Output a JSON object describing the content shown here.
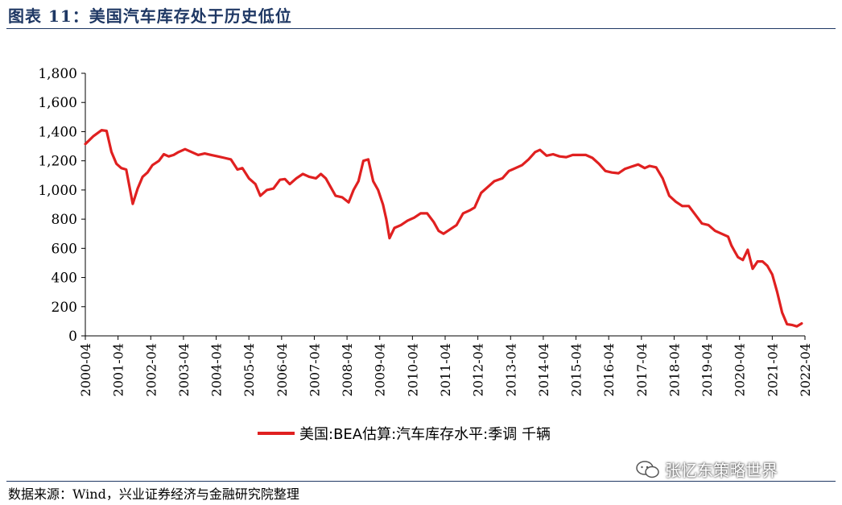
{
  "figure": {
    "title": "图表 11：美国汽车库存处于历史低位",
    "source": "数据来源：Wind，兴业证券经济与金融研究院整理",
    "watermark": "张忆东策略世界"
  },
  "colors": {
    "line": "#e02020",
    "title": "#1f3864"
  },
  "chart_data": {
    "type": "line",
    "title": "",
    "xlabel": "",
    "ylabel": "",
    "ylim": [
      0,
      1800
    ],
    "yticks": [
      0,
      200,
      400,
      600,
      800,
      1000,
      1200,
      1400,
      1600,
      1800
    ],
    "ytick_labels": [
      "0",
      "200",
      "400",
      "600",
      "800",
      "1,000",
      "1,200",
      "1,400",
      "1,600",
      "1,800"
    ],
    "xlim": [
      2000.25,
      2022.25
    ],
    "xticks": [
      2000.25,
      2001.25,
      2002.25,
      2003.25,
      2004.25,
      2005.25,
      2006.25,
      2007.25,
      2008.25,
      2009.25,
      2010.25,
      2011.25,
      2012.25,
      2013.25,
      2014.25,
      2015.25,
      2016.25,
      2017.25,
      2018.25,
      2019.25,
      2020.25,
      2021.25,
      2022.25
    ],
    "xtick_labels": [
      "2000-04",
      "2001-04",
      "2002-04",
      "2003-04",
      "2004-04",
      "2005-04",
      "2006-04",
      "2007-04",
      "2008-04",
      "2009-04",
      "2010-04",
      "2011-04",
      "2012-04",
      "2013-04",
      "2014-04",
      "2015-04",
      "2016-04",
      "2017-04",
      "2018-04",
      "2019-04",
      "2020-04",
      "2021-04",
      "2022-04"
    ],
    "grid": false,
    "legend_position": "bottom",
    "series": [
      {
        "name": "美国:BEA估算:汽车库存水平:季调 千辆",
        "x": [
          2000.25,
          2000.5,
          2000.75,
          2000.9,
          2001.05,
          2001.2,
          2001.35,
          2001.5,
          2001.7,
          2001.85,
          2002.0,
          2002.15,
          2002.3,
          2002.5,
          2002.65,
          2002.8,
          2002.95,
          2003.1,
          2003.3,
          2003.5,
          2003.7,
          2003.9,
          2004.1,
          2004.3,
          2004.5,
          2004.7,
          2004.9,
          2005.05,
          2005.25,
          2005.45,
          2005.6,
          2005.8,
          2006.0,
          2006.2,
          2006.35,
          2006.5,
          2006.7,
          2006.9,
          2007.1,
          2007.3,
          2007.45,
          2007.6,
          2007.75,
          2007.9,
          2008.1,
          2008.3,
          2008.45,
          2008.6,
          2008.75,
          2008.9,
          2009.05,
          2009.2,
          2009.35,
          2009.45,
          2009.55,
          2009.7,
          2009.9,
          2010.1,
          2010.3,
          2010.5,
          2010.7,
          2010.9,
          2011.05,
          2011.2,
          2011.4,
          2011.6,
          2011.8,
          2012.0,
          2012.15,
          2012.35,
          2012.55,
          2012.75,
          2013.0,
          2013.2,
          2013.4,
          2013.6,
          2013.8,
          2014.0,
          2014.15,
          2014.35,
          2014.55,
          2014.75,
          2014.95,
          2015.15,
          2015.35,
          2015.55,
          2015.75,
          2015.95,
          2016.15,
          2016.35,
          2016.55,
          2016.75,
          2016.95,
          2017.15,
          2017.35,
          2017.5,
          2017.7,
          2017.9,
          2018.1,
          2018.3,
          2018.5,
          2018.7,
          2018.9,
          2019.1,
          2019.3,
          2019.5,
          2019.7,
          2019.9,
          2020.0,
          2020.1,
          2020.2,
          2020.35,
          2020.5,
          2020.65,
          2020.8,
          2020.95,
          2021.1,
          2021.25,
          2021.4,
          2021.55,
          2021.7,
          2021.85,
          2022.0,
          2022.15
        ],
        "values": [
          1315,
          1370,
          1410,
          1405,
          1260,
          1180,
          1150,
          1140,
          905,
          1010,
          1090,
          1120,
          1170,
          1200,
          1245,
          1230,
          1240,
          1260,
          1280,
          1260,
          1240,
          1250,
          1240,
          1230,
          1220,
          1210,
          1140,
          1150,
          1080,
          1040,
          960,
          1000,
          1010,
          1070,
          1075,
          1040,
          1080,
          1110,
          1090,
          1080,
          1110,
          1080,
          1020,
          960,
          950,
          915,
          1000,
          1060,
          1200,
          1210,
          1060,
          1000,
          900,
          800,
          670,
          740,
          760,
          790,
          810,
          840,
          840,
          780,
          720,
          700,
          730,
          760,
          840,
          860,
          880,
          980,
          1020,
          1060,
          1080,
          1130,
          1150,
          1170,
          1210,
          1260,
          1275,
          1235,
          1245,
          1230,
          1225,
          1240,
          1240,
          1240,
          1220,
          1180,
          1130,
          1120,
          1115,
          1145,
          1160,
          1175,
          1150,
          1165,
          1155,
          1080,
          960,
          920,
          890,
          890,
          830,
          770,
          760,
          720,
          700,
          680,
          620,
          580,
          540,
          520,
          590,
          460,
          510,
          510,
          480,
          420,
          300,
          160,
          80,
          75,
          65,
          85
        ]
      }
    ]
  }
}
